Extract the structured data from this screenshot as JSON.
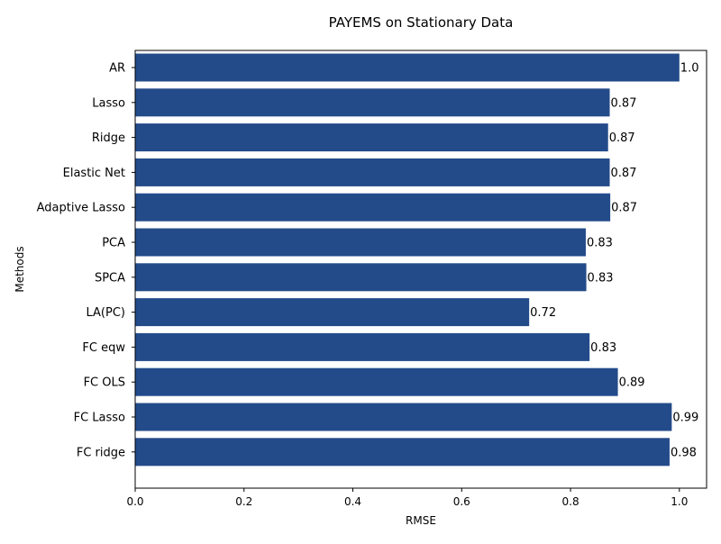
{
  "chart_data": {
    "type": "bar",
    "orientation": "horizontal",
    "title": "PAYEMS on Stationary Data",
    "xlabel": "RMSE",
    "ylabel": "Methods",
    "categories": [
      "AR",
      "Lasso",
      "Ridge",
      "Elastic Net",
      "Adaptive Lasso",
      "PCA",
      "SPCA",
      "LA(PC)",
      "FC eqw",
      "FC OLS",
      "FC Lasso",
      "FC ridge"
    ],
    "values": [
      1.0,
      0.872,
      0.869,
      0.872,
      0.873,
      0.828,
      0.829,
      0.724,
      0.835,
      0.887,
      0.986,
      0.982
    ],
    "value_labels": [
      "1.0",
      "0.87",
      "0.87",
      "0.87",
      "0.87",
      "0.83",
      "0.83",
      "0.72",
      "0.83",
      "0.89",
      "0.99",
      "0.98"
    ],
    "xlim": [
      0,
      1.05
    ],
    "xticks": [
      0.0,
      0.2,
      0.4,
      0.6,
      0.8,
      1.0
    ],
    "xtick_labels": [
      "0.0",
      "0.2",
      "0.4",
      "0.6",
      "0.8",
      "1.0"
    ],
    "bar_color": "#234b8a",
    "grid": false,
    "legend": "none"
  }
}
